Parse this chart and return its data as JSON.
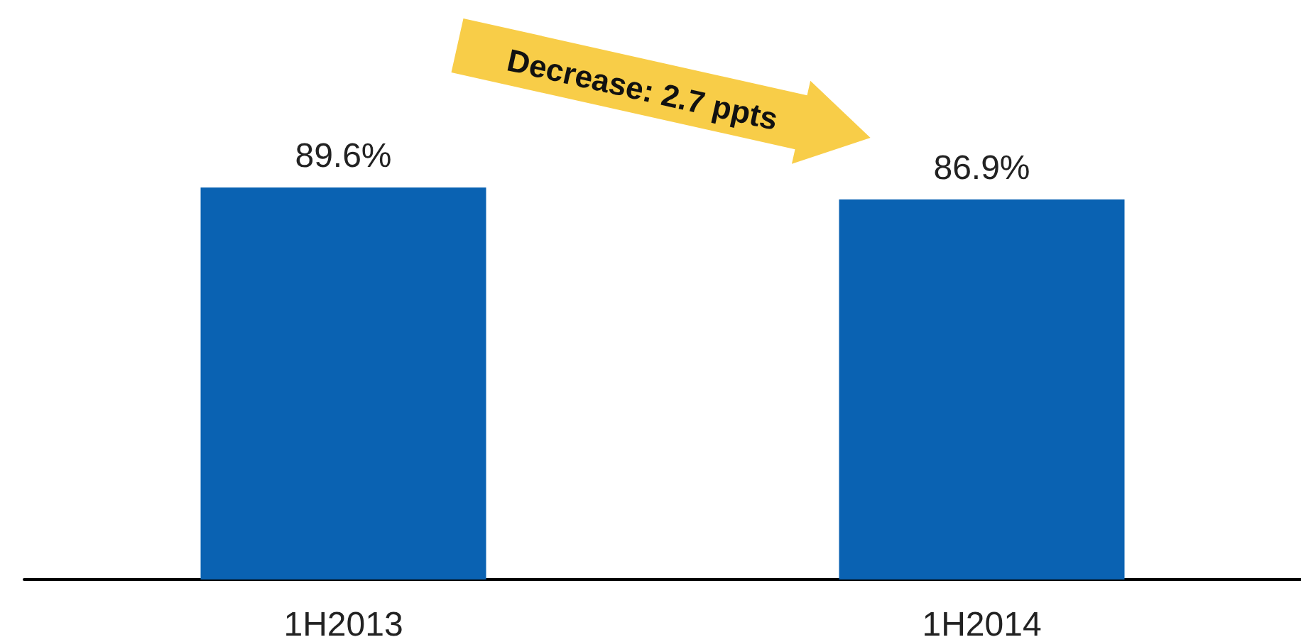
{
  "chart_data": {
    "type": "bar",
    "categories": [
      "1H2013",
      "1H2014"
    ],
    "values": [
      89.6,
      86.9
    ],
    "color": "#0a62b2",
    "value_labels": [
      "89.6%",
      "86.9%"
    ],
    "tick_labels": "x",
    "grid": false,
    "annotations": [
      "Decrease: 2.7 ppts"
    ]
  }
}
